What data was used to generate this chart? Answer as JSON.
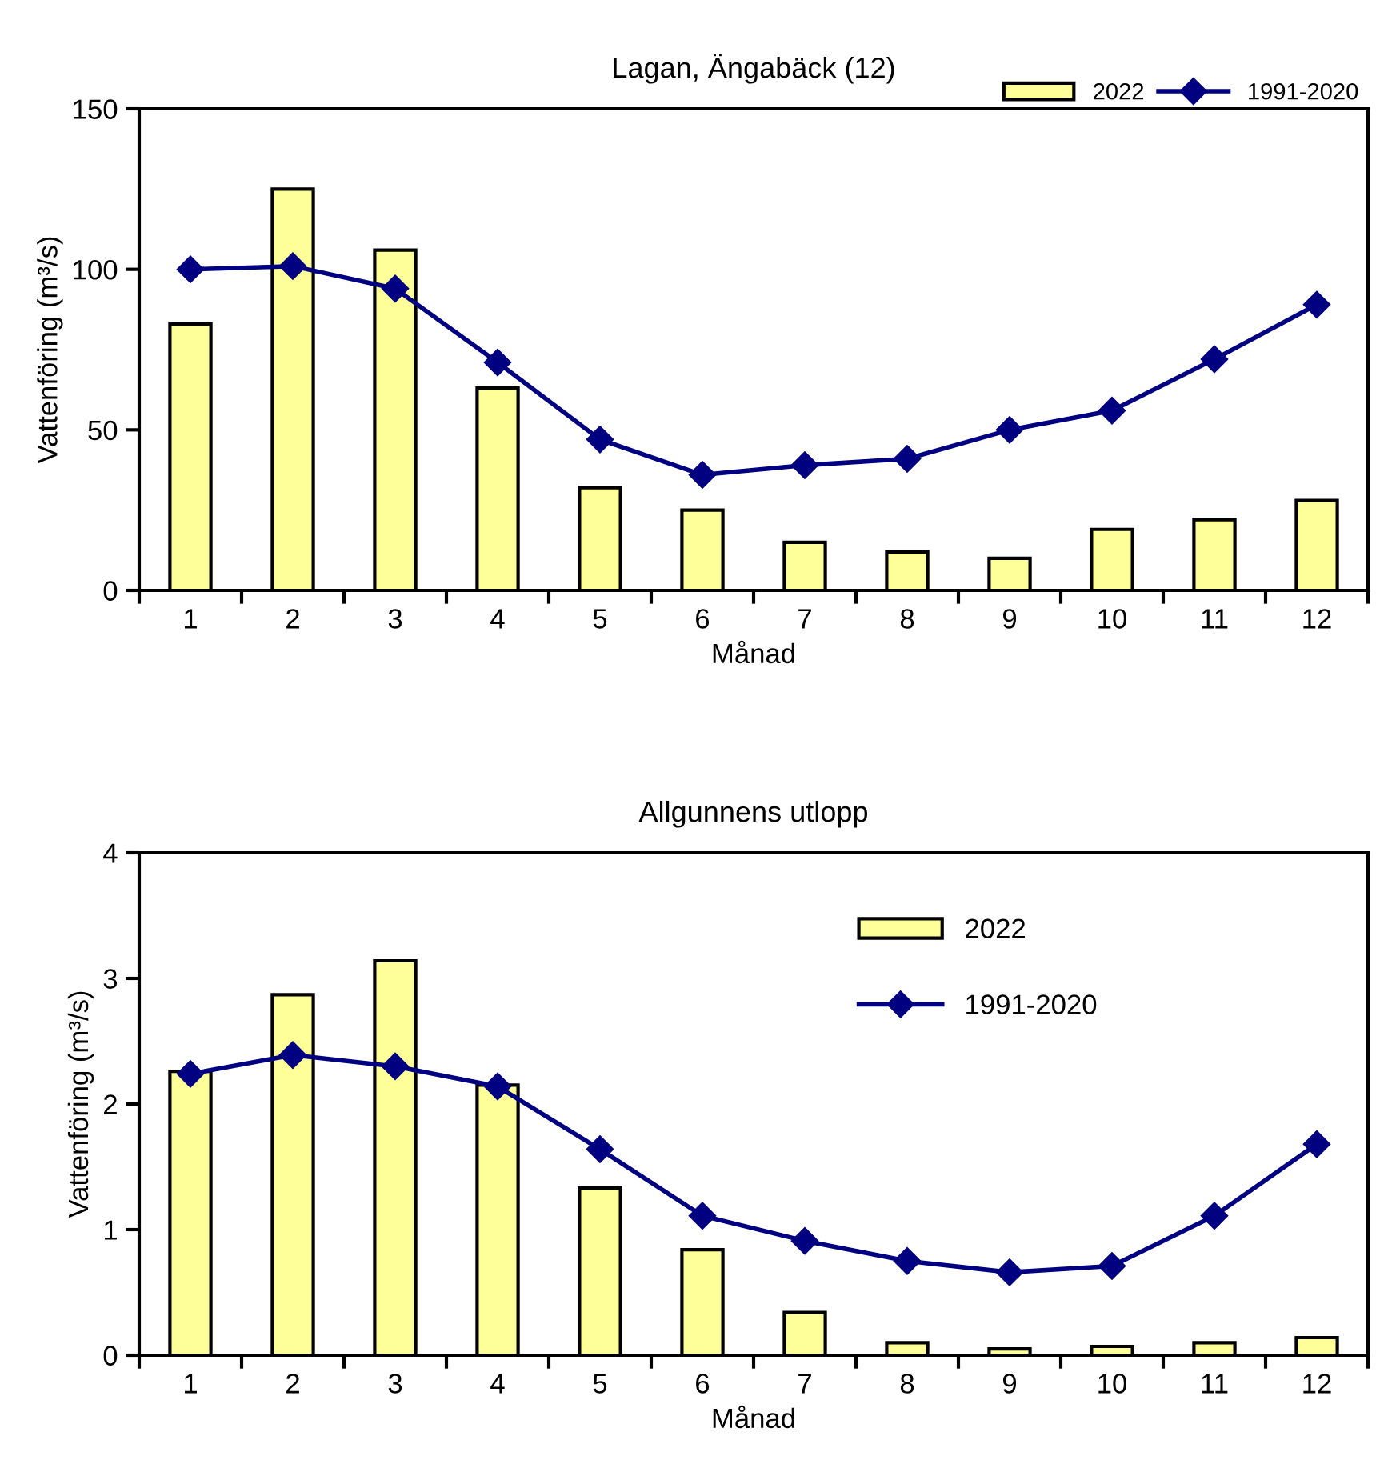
{
  "chart_data": [
    {
      "type": "bar",
      "title": "Lagan, Ängabäck (12)",
      "xlabel": "Månad",
      "ylabel": "Vattenföring (m³/s)",
      "categories": [
        "1",
        "2",
        "3",
        "4",
        "5",
        "6",
        "7",
        "8",
        "9",
        "10",
        "11",
        "12"
      ],
      "ylim": [
        0,
        150
      ],
      "yticks": [
        0,
        50,
        100,
        150
      ],
      "legend": "top",
      "grid": false,
      "series": [
        {
          "name": "2022",
          "color": "#ffff99",
          "values": [
            83,
            125,
            106,
            63,
            32,
            25,
            15,
            12,
            10,
            19,
            22,
            28
          ]
        },
        {
          "name": "1991-2020",
          "type": "line",
          "color": "#000080",
          "marker": "diamond",
          "values": [
            100,
            101,
            94,
            71,
            47,
            36,
            39,
            41,
            50,
            56,
            72,
            89
          ]
        }
      ]
    },
    {
      "type": "bar",
      "title": "Allgunnens utlopp",
      "xlabel": "Månad",
      "ylabel": "Vattenföring (m³/s)",
      "categories": [
        "1",
        "2",
        "3",
        "4",
        "5",
        "6",
        "7",
        "8",
        "9",
        "10",
        "11",
        "12"
      ],
      "ylim": [
        0,
        4
      ],
      "yticks": [
        0,
        1,
        2,
        3,
        4
      ],
      "legend": "top right",
      "grid": false,
      "series": [
        {
          "name": "2022",
          "color": "#ffff99",
          "values": [
            2.26,
            2.87,
            3.14,
            2.15,
            1.33,
            0.84,
            0.34,
            0.1,
            0.05,
            0.07,
            0.1,
            0.14
          ]
        },
        {
          "name": "1991-2020",
          "type": "line",
          "color": "#000080",
          "marker": "diamond",
          "values": [
            2.24,
            2.39,
            2.3,
            2.14,
            1.64,
            1.11,
            0.91,
            0.75,
            0.66,
            0.71,
            1.11,
            1.68
          ]
        }
      ]
    }
  ]
}
